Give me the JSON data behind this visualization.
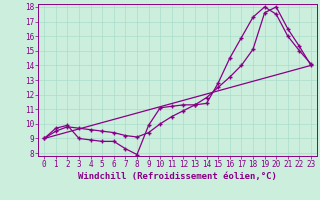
{
  "xlabel": "Windchill (Refroidissement éolien,°C)",
  "background_color": "#cceedd",
  "line_color": "#880088",
  "grid_color": "#aaddcc",
  "xlim": [
    -0.5,
    23.5
  ],
  "ylim": [
    7.8,
    18.2
  ],
  "xticks": [
    0,
    1,
    2,
    3,
    4,
    5,
    6,
    7,
    8,
    9,
    10,
    11,
    12,
    13,
    14,
    15,
    16,
    17,
    18,
    19,
    20,
    21,
    22,
    23
  ],
  "yticks": [
    8,
    9,
    10,
    11,
    12,
    13,
    14,
    15,
    16,
    17,
    18
  ],
  "line1_x": [
    0,
    1,
    2,
    3,
    4,
    5,
    6,
    7,
    8,
    9,
    10,
    11,
    12,
    13,
    14,
    15,
    16,
    17,
    18,
    19,
    20,
    21,
    22,
    23
  ],
  "line1_y": [
    9.0,
    9.7,
    9.9,
    9.0,
    8.9,
    8.8,
    8.8,
    8.3,
    7.9,
    9.9,
    11.1,
    11.2,
    11.3,
    11.3,
    11.4,
    12.8,
    14.5,
    15.9,
    17.3,
    18.0,
    17.5,
    16.0,
    15.0,
    14.1
  ],
  "line2_x": [
    0,
    1,
    2,
    3,
    4,
    5,
    6,
    7,
    8,
    9,
    10,
    11,
    12,
    13,
    14,
    15,
    16,
    17,
    18,
    19,
    20,
    21,
    22,
    23
  ],
  "line2_y": [
    9.0,
    9.5,
    9.8,
    9.7,
    9.6,
    9.5,
    9.4,
    9.2,
    9.1,
    9.4,
    10.0,
    10.5,
    10.9,
    11.3,
    11.8,
    12.5,
    13.2,
    14.0,
    15.1,
    17.6,
    18.0,
    16.5,
    15.3,
    14.0
  ],
  "line3_x": [
    0,
    23
  ],
  "line3_y": [
    9.0,
    14.0
  ],
  "marker": "+",
  "markersize": 3.5,
  "linewidth": 0.9,
  "xlabel_fontsize": 6.5,
  "tick_fontsize": 5.5
}
